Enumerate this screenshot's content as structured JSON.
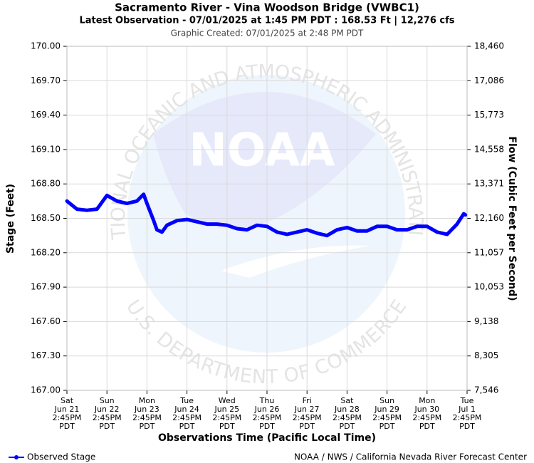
{
  "chart_data": {
    "type": "line",
    "title": "Sacramento River - Vina Woodson Bridge (VWBC1)",
    "subtitle": "Latest Observation - 07/01/2025 at 1:45 PM PDT : 168.53 Ft | 12,276 cfs",
    "created": "Graphic Created: 07/01/2025 at 2:48 PM PDT",
    "xlabel": "Observations Time (Pacific Local Time)",
    "ylabel": "Stage (Feet)",
    "y2label": "Flow (Cubic Feet per Second)",
    "footer": "NOAA / NWS / California Nevada River Forecast Center",
    "watermark": {
      "logo": "NOAA",
      "upper": "NATIONAL OCEANIC AND ATMOSPHERIC ADMINISTRATION",
      "lower": "U.S. DEPARTMENT OF COMMERCE"
    },
    "grid": true,
    "legend": "bottom-left",
    "ylim": [
      167,
      170
    ],
    "yticks": [
      {
        "value": 170,
        "label": "170.00"
      },
      {
        "value": 169.7,
        "label": "169.70"
      },
      {
        "value": 169.4,
        "label": "169.40"
      },
      {
        "value": 169.1,
        "label": "169.10"
      },
      {
        "value": 168.8,
        "label": "168.80"
      },
      {
        "value": 168.5,
        "label": "168.50"
      },
      {
        "value": 168.2,
        "label": "168.20"
      },
      {
        "value": 167.9,
        "label": "167.90"
      },
      {
        "value": 167.6,
        "label": "167.60"
      },
      {
        "value": 167.3,
        "label": "167.30"
      },
      {
        "value": 167,
        "label": "167.00"
      }
    ],
    "y2ticks": [
      {
        "value": 18460,
        "label": "18,460"
      },
      {
        "value": 17086,
        "label": "17,086"
      },
      {
        "value": 15773,
        "label": "15,773"
      },
      {
        "value": 14558,
        "label": "14,558"
      },
      {
        "value": 13371,
        "label": "13,371"
      },
      {
        "value": 12160,
        "label": "12,160"
      },
      {
        "value": 11057,
        "label": "11,057"
      },
      {
        "value": 10053,
        "label": "10,053"
      },
      {
        "value": 9138,
        "label": "9,138"
      },
      {
        "value": 8305,
        "label": "8,305"
      },
      {
        "value": 7546,
        "label": "7,546"
      }
    ],
    "xlim": [
      "06/21 14:45",
      "07/01 14:45"
    ],
    "xticks": [
      {
        "value": "06/21 14:45",
        "label": [
          "Sat",
          "Jun 21",
          "2:45PM",
          "PDT"
        ]
      },
      {
        "value": "06/22 14:45",
        "label": [
          "Sun",
          "Jun 22",
          "2:45PM",
          "PDT"
        ]
      },
      {
        "value": "06/23 14:45",
        "label": [
          "Mon",
          "Jun 23",
          "2:45PM",
          "PDT"
        ]
      },
      {
        "value": "06/24 14:45",
        "label": [
          "Tue",
          "Jun 24",
          "2:45PM",
          "PDT"
        ]
      },
      {
        "value": "06/25 14:45",
        "label": [
          "Wed",
          "Jun 25",
          "2:45PM",
          "PDT"
        ]
      },
      {
        "value": "06/26 14:45",
        "label": [
          "Thu",
          "Jun 26",
          "2:45PM",
          "PDT"
        ]
      },
      {
        "value": "06/27 14:45",
        "label": [
          "Fri",
          "Jun 27",
          "2:45PM",
          "PDT"
        ]
      },
      {
        "value": "06/28 14:45",
        "label": [
          "Sat",
          "Jun 28",
          "2:45PM",
          "PDT"
        ]
      },
      {
        "value": "06/29 14:45",
        "label": [
          "Sun",
          "Jun 29",
          "2:45PM",
          "PDT"
        ]
      },
      {
        "value": "06/30 14:45",
        "label": [
          "Mon",
          "Jun 30",
          "2:45PM",
          "PDT"
        ]
      },
      {
        "value": "07/01 14:45",
        "label": [
          "Tue",
          "Jul 1",
          "2:45PM",
          "PDT"
        ]
      }
    ],
    "x": [
      "06/21 14:45",
      "06/21 20:45",
      "06/22 02:45",
      "06/22 08:45",
      "06/22 14:45",
      "06/22 20:45",
      "06/23 02:45",
      "06/23 08:45",
      "06/23 12:45",
      "06/23 14:45",
      "06/23 18:45",
      "06/23 20:45",
      "06/23 23:45",
      "06/24 02:45",
      "06/24 08:45",
      "06/24 14:45",
      "06/24 20:45",
      "06/25 02:45",
      "06/25 08:45",
      "06/25 14:45",
      "06/25 20:45",
      "06/26 02:45",
      "06/26 08:45",
      "06/26 14:45",
      "06/26 20:45",
      "06/27 02:45",
      "06/27 08:45",
      "06/27 14:45",
      "06/27 20:45",
      "06/28 02:45",
      "06/28 08:45",
      "06/28 14:45",
      "06/28 20:45",
      "06/29 02:45",
      "06/29 08:45",
      "06/29 14:45",
      "06/29 20:45",
      "06/30 02:45",
      "06/30 08:45",
      "06/30 14:45",
      "06/30 20:45",
      "07/01 02:45",
      "07/01 08:45",
      "07/01 12:45",
      "07/01 13:45"
    ],
    "series": [
      {
        "name": "Observed Stage",
        "color": "#0000ff",
        "values": [
          168.65,
          168.58,
          168.57,
          168.58,
          168.7,
          168.65,
          168.63,
          168.65,
          168.71,
          168.63,
          168.48,
          168.4,
          168.38,
          168.44,
          168.48,
          168.49,
          168.47,
          168.45,
          168.45,
          168.44,
          168.41,
          168.4,
          168.44,
          168.43,
          168.38,
          168.36,
          168.38,
          168.4,
          168.37,
          168.35,
          168.4,
          168.42,
          168.39,
          168.39,
          168.43,
          168.43,
          168.4,
          168.4,
          168.43,
          168.43,
          168.38,
          168.36,
          168.45,
          168.54,
          168.53
        ]
      }
    ]
  }
}
